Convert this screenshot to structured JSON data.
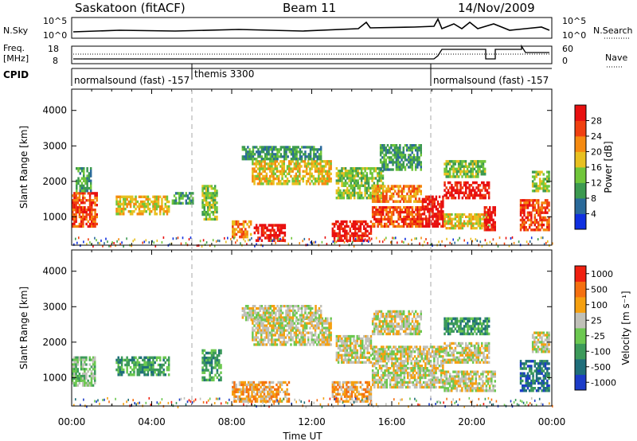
{
  "header": {
    "station": "Saskatoon (fitACF)",
    "beam": "Beam 11",
    "date": "14/Nov/2009"
  },
  "panels": {
    "nsky": {
      "label": "N.Sky",
      "tick_top": "10^5",
      "tick_bottom": "10^0",
      "right_tick_top": "10^5",
      "right_tick_bottom": "10^0",
      "right_label": "N.Search"
    },
    "freq": {
      "label_line1": "Freq.",
      "label_line2": "[MHz]",
      "tick_top": "18",
      "tick_bottom": "8",
      "right_tick_top": "60",
      "right_tick_bottom": "0",
      "right_label": "Nave"
    },
    "cpid": {
      "label": "CPID",
      "segments": [
        {
          "text": "normalsound (fast) -157",
          "start_hour": 0.0
        },
        {
          "text": "themis 3300",
          "start_hour": 6.1
        },
        {
          "text": "normalsound (fast) -157",
          "start_hour": 18.1
        }
      ]
    }
  },
  "chart_data": [
    {
      "type": "heatmap",
      "title": "",
      "ylabel": "Slant Range [km]",
      "xlabel": "",
      "colorbar_label": "Power [dB]",
      "xlim_hours": [
        0,
        24
      ],
      "ylim": [
        200,
        4600
      ],
      "yticks": [
        1000,
        2000,
        3000,
        4000
      ],
      "colorbar_ticks": [
        "4",
        "8",
        "12",
        "16",
        "20",
        "24",
        "28"
      ],
      "colorbar_colors": [
        "#1030e0",
        "#2a6a9a",
        "#3c9a50",
        "#70c63a",
        "#e8c020",
        "#f58a10",
        "#f04010",
        "#e81010"
      ],
      "regions": [
        {
          "t0": 0.0,
          "t1": 1.3,
          "r0": 700,
          "r1": 1700,
          "level": 6
        },
        {
          "t0": 0.2,
          "t1": 1.0,
          "r0": 1700,
          "r1": 2400,
          "level": 2
        },
        {
          "t0": 2.2,
          "t1": 4.9,
          "r0": 1050,
          "r1": 1600,
          "level": 4
        },
        {
          "t0": 5.0,
          "t1": 6.1,
          "r0": 1350,
          "r1": 1700,
          "level": 2
        },
        {
          "t0": 6.5,
          "t1": 7.3,
          "r0": 900,
          "r1": 1900,
          "level": 3
        },
        {
          "t0": 8.0,
          "t1": 9.0,
          "r0": 400,
          "r1": 900,
          "level": 5
        },
        {
          "t0": 9.1,
          "t1": 10.7,
          "r0": 300,
          "r1": 800,
          "level": 7
        },
        {
          "t0": 9.0,
          "t1": 13.0,
          "r0": 1900,
          "r1": 2600,
          "level": 4
        },
        {
          "t0": 8.5,
          "t1": 12.5,
          "r0": 2600,
          "r1": 3000,
          "level": 2
        },
        {
          "t0": 13.0,
          "t1": 15.0,
          "r0": 300,
          "r1": 900,
          "level": 7
        },
        {
          "t0": 13.2,
          "t1": 15.6,
          "r0": 1500,
          "r1": 2400,
          "level": 3
        },
        {
          "t0": 15.0,
          "t1": 17.5,
          "r0": 700,
          "r1": 1300,
          "level": 6
        },
        {
          "t0": 15.0,
          "t1": 17.5,
          "r0": 1400,
          "r1": 1900,
          "level": 5
        },
        {
          "t0": 15.4,
          "t1": 17.5,
          "r0": 2300,
          "r1": 3050,
          "level": 2
        },
        {
          "t0": 17.5,
          "t1": 18.6,
          "r0": 700,
          "r1": 1600,
          "level": 7
        },
        {
          "t0": 18.6,
          "t1": 20.9,
          "r0": 1500,
          "r1": 2000,
          "level": 7
        },
        {
          "t0": 18.6,
          "t1": 20.9,
          "r0": 650,
          "r1": 1100,
          "level": 4
        },
        {
          "t0": 18.6,
          "t1": 20.7,
          "r0": 2100,
          "r1": 2600,
          "level": 3
        },
        {
          "t0": 20.6,
          "t1": 21.2,
          "r0": 600,
          "r1": 1300,
          "level": 7
        },
        {
          "t0": 22.4,
          "t1": 23.9,
          "r0": 600,
          "r1": 1500,
          "level": 6
        },
        {
          "t0": 23.0,
          "t1": 23.9,
          "r0": 1700,
          "r1": 2300,
          "level": 3
        }
      ]
    },
    {
      "type": "heatmap",
      "title": "",
      "ylabel": "Slant Range [km]",
      "xlabel": "Time UT",
      "colorbar_label": "Velocity [m s⁻¹]",
      "xlim_hours": [
        0,
        24
      ],
      "ylim": [
        200,
        4600
      ],
      "yticks": [
        1000,
        2000,
        3000,
        4000
      ],
      "xticks": [
        "00:00",
        "04:00",
        "08:00",
        "12:00",
        "16:00",
        "20:00",
        "00:00"
      ],
      "colorbar_ticks": [
        "1000",
        "500",
        "100",
        "25",
        "-25",
        "-100",
        "-500",
        "-1000"
      ],
      "colorbar_colors": [
        "#1c3cc8",
        "#1f6e7a",
        "#3c9a5a",
        "#6cc850",
        "#c0c0b8",
        "#f5a010",
        "#f57010",
        "#f02010"
      ],
      "regions": [
        {
          "t0": 0.0,
          "t1": 1.2,
          "r0": 750,
          "r1": 1600,
          "level": 3
        },
        {
          "t0": 2.2,
          "t1": 4.9,
          "r0": 1050,
          "r1": 1600,
          "level": 2
        },
        {
          "t0": 6.5,
          "t1": 7.5,
          "r0": 900,
          "r1": 1800,
          "level": 2
        },
        {
          "t0": 8.0,
          "t1": 10.9,
          "r0": 300,
          "r1": 900,
          "level": 5
        },
        {
          "t0": 9.0,
          "t1": 13.0,
          "r0": 1900,
          "r1": 2700,
          "level": 4
        },
        {
          "t0": 8.5,
          "t1": 12.5,
          "r0": 2600,
          "r1": 3050,
          "level": 4
        },
        {
          "t0": 13.0,
          "t1": 15.0,
          "r0": 300,
          "r1": 900,
          "level": 5
        },
        {
          "t0": 13.2,
          "t1": 15.0,
          "r0": 1400,
          "r1": 2200,
          "level": 4
        },
        {
          "t0": 15.0,
          "t1": 18.6,
          "r0": 700,
          "r1": 1900,
          "level": 4
        },
        {
          "t0": 15.0,
          "t1": 17.5,
          "r0": 2200,
          "r1": 2900,
          "level": 4
        },
        {
          "t0": 18.6,
          "t1": 20.9,
          "r0": 1400,
          "r1": 2000,
          "level": 4
        },
        {
          "t0": 18.6,
          "t1": 20.9,
          "r0": 2200,
          "r1": 2700,
          "level": 2
        },
        {
          "t0": 18.6,
          "t1": 21.2,
          "r0": 600,
          "r1": 1200,
          "level": 4
        },
        {
          "t0": 22.4,
          "t1": 23.9,
          "r0": 600,
          "r1": 1500,
          "level": 1
        },
        {
          "t0": 23.0,
          "t1": 23.9,
          "r0": 1700,
          "r1": 2300,
          "level": 4
        }
      ]
    }
  ]
}
